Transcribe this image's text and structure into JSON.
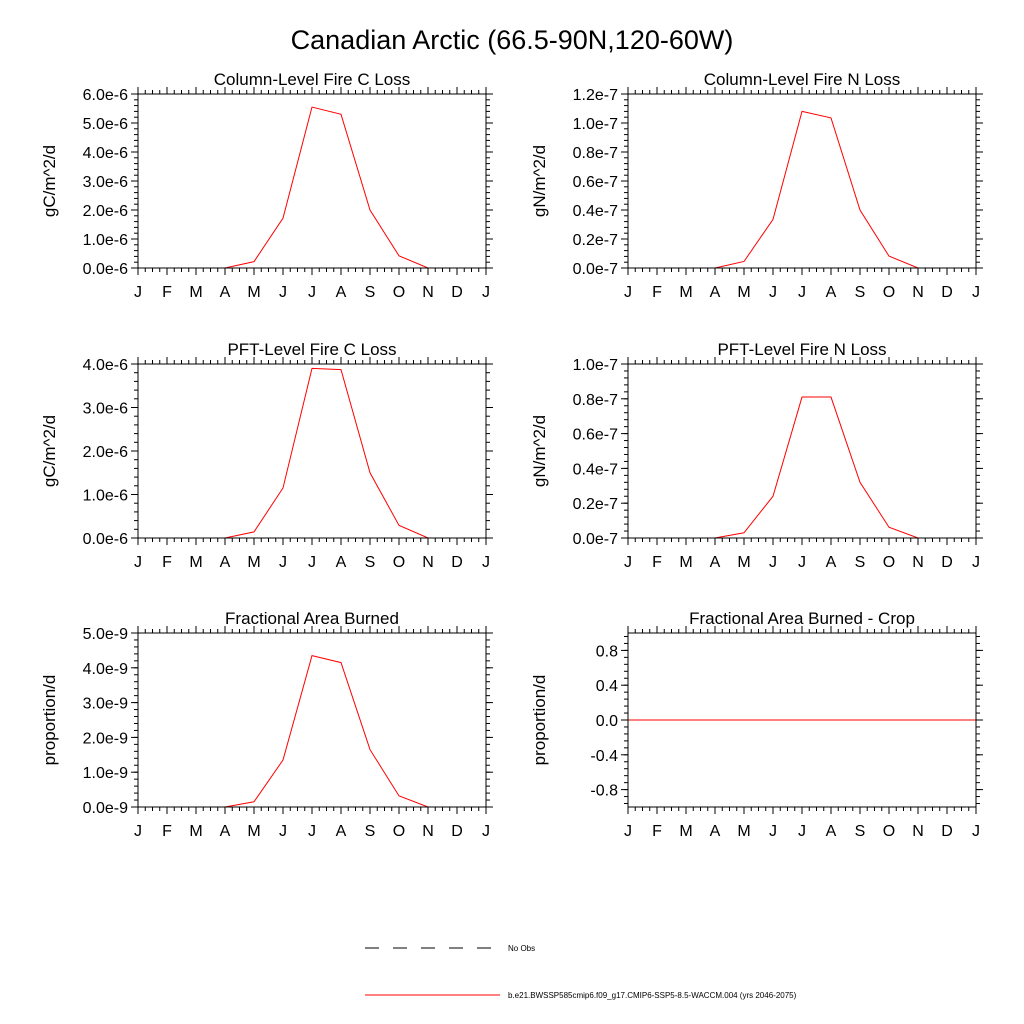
{
  "title": "Canadian Arctic (66.5-90N,120-60W)",
  "series_color": "#ff0000",
  "months": [
    "J",
    "F",
    "M",
    "A",
    "M",
    "J",
    "J",
    "A",
    "S",
    "O",
    "N",
    "D",
    "J"
  ],
  "legend": {
    "obs_label": "No Obs",
    "model_label": "b.e21.BWSSP585cmip6.f09_g17.CMIP6-SSP5-8.5-WACCM.004 (yrs 2046-2075)"
  },
  "chart_data": [
    {
      "type": "line",
      "title": "Column-Level Fire C Loss",
      "ylabel": "gC/m^2/d",
      "xlabel": "",
      "ylim": [
        0,
        6e-06
      ],
      "yticks": [
        0,
        1e-06,
        2e-06,
        3e-06,
        4e-06,
        5e-06,
        6e-06
      ],
      "ytick_labels": [
        "0.0e-6",
        "1.0e-6",
        "2.0e-6",
        "3.0e-6",
        "4.0e-6",
        "5.0e-6",
        "6.0e-6"
      ],
      "x": [
        0,
        1,
        2,
        3,
        4,
        5,
        6,
        7,
        8,
        9,
        10,
        11,
        12
      ],
      "series": [
        {
          "name": "b.e21.BWSSP585cmip6.f09_g17.CMIP6-SSP5-8.5-WACCM.004 (yrs 2046-2075)",
          "values": [
            0,
            0,
            0,
            0,
            2.2e-07,
            1.72e-06,
            5.55e-06,
            5.3e-06,
            2e-06,
            4.2e-07,
            0,
            0,
            0
          ]
        }
      ]
    },
    {
      "type": "line",
      "title": "Column-Level Fire N Loss",
      "ylabel": "gN/m^2/d",
      "xlabel": "",
      "ylim": [
        0,
        1.2e-07
      ],
      "yticks": [
        0,
        2e-08,
        4e-08,
        6e-08,
        8e-08,
        1e-07,
        1.2e-07
      ],
      "ytick_labels": [
        "0.0e-7",
        "0.2e-7",
        "0.4e-7",
        "0.6e-7",
        "0.8e-7",
        "1.0e-7",
        "1.2e-7"
      ],
      "x": [
        0,
        1,
        2,
        3,
        4,
        5,
        6,
        7,
        8,
        9,
        10,
        11,
        12
      ],
      "series": [
        {
          "name": "b.e21.BWSSP585cmip6.f09_g17.CMIP6-SSP5-8.5-WACCM.004 (yrs 2046-2075)",
          "values": [
            0,
            0,
            0,
            0,
            4.5e-09,
            3.35e-08,
            1.08e-07,
            1.035e-07,
            4e-08,
            8.2e-09,
            0,
            0,
            0
          ]
        }
      ]
    },
    {
      "type": "line",
      "title": "PFT-Level Fire C Loss",
      "ylabel": "gC/m^2/d",
      "xlabel": "",
      "ylim": [
        0,
        4e-06
      ],
      "yticks": [
        0,
        1e-06,
        2e-06,
        3e-06,
        4e-06
      ],
      "ytick_labels": [
        "0.0e-6",
        "1.0e-6",
        "2.0e-6",
        "3.0e-6",
        "4.0e-6"
      ],
      "x": [
        0,
        1,
        2,
        3,
        4,
        5,
        6,
        7,
        8,
        9,
        10,
        11,
        12
      ],
      "series": [
        {
          "name": "b.e21.BWSSP585cmip6.f09_g17.CMIP6-SSP5-8.5-WACCM.004 (yrs 2046-2075)",
          "values": [
            0,
            0,
            0,
            0,
            1.4e-07,
            1.15e-06,
            3.9e-06,
            3.87e-06,
            1.5e-06,
            2.9e-07,
            0,
            0,
            0
          ]
        }
      ]
    },
    {
      "type": "line",
      "title": "PFT-Level Fire N Loss",
      "ylabel": "gN/m^2/d",
      "xlabel": "",
      "ylim": [
        0,
        1e-07
      ],
      "yticks": [
        0,
        2e-08,
        4e-08,
        6e-08,
        8e-08,
        1e-07
      ],
      "ytick_labels": [
        "0.0e-7",
        "0.2e-7",
        "0.4e-7",
        "0.6e-7",
        "0.8e-7",
        "1.0e-7"
      ],
      "x": [
        0,
        1,
        2,
        3,
        4,
        5,
        6,
        7,
        8,
        9,
        10,
        11,
        12
      ],
      "series": [
        {
          "name": "b.e21.BWSSP585cmip6.f09_g17.CMIP6-SSP5-8.5-WACCM.004 (yrs 2046-2075)",
          "values": [
            0,
            0,
            0,
            0,
            3e-09,
            2.4e-08,
            8.1e-08,
            8.1e-08,
            3.2e-08,
            6.2e-09,
            0,
            0,
            0
          ]
        }
      ]
    },
    {
      "type": "line",
      "title": "Fractional Area Burned",
      "ylabel": "proportion/d",
      "xlabel": "",
      "ylim": [
        0,
        5e-09
      ],
      "yticks": [
        0,
        1e-09,
        2e-09,
        3e-09,
        4e-09,
        5e-09
      ],
      "ytick_labels": [
        "0.0e-9",
        "1.0e-9",
        "2.0e-9",
        "3.0e-9",
        "4.0e-9",
        "5.0e-9"
      ],
      "x": [
        0,
        1,
        2,
        3,
        4,
        5,
        6,
        7,
        8,
        9,
        10,
        11,
        12
      ],
      "series": [
        {
          "name": "b.e21.BWSSP585cmip6.f09_g17.CMIP6-SSP5-8.5-WACCM.004 (yrs 2046-2075)",
          "values": [
            0,
            0,
            0,
            0,
            1.5e-10,
            1.35e-09,
            4.35e-09,
            4.15e-09,
            1.65e-09,
            3.2e-10,
            0,
            0,
            0
          ]
        }
      ]
    },
    {
      "type": "line",
      "title": "Fractional Area Burned - Crop",
      "ylabel": "proportion/d",
      "xlabel": "",
      "ylim": [
        -1,
        1
      ],
      "yticks": [
        -0.8,
        -0.4,
        0.0,
        0.4,
        0.8
      ],
      "ytick_labels": [
        "-0.8",
        "-0.4",
        "0.0",
        "0.4",
        "0.8"
      ],
      "x": [
        0,
        1,
        2,
        3,
        4,
        5,
        6,
        7,
        8,
        9,
        10,
        11,
        12
      ],
      "series": [
        {
          "name": "b.e21.BWSSP585cmip6.f09_g17.CMIP6-SSP5-8.5-WACCM.004 (yrs 2046-2075)",
          "values": [
            0,
            0,
            0,
            0,
            0,
            0,
            0,
            0,
            0,
            0,
            0,
            0,
            0
          ]
        }
      ]
    }
  ]
}
